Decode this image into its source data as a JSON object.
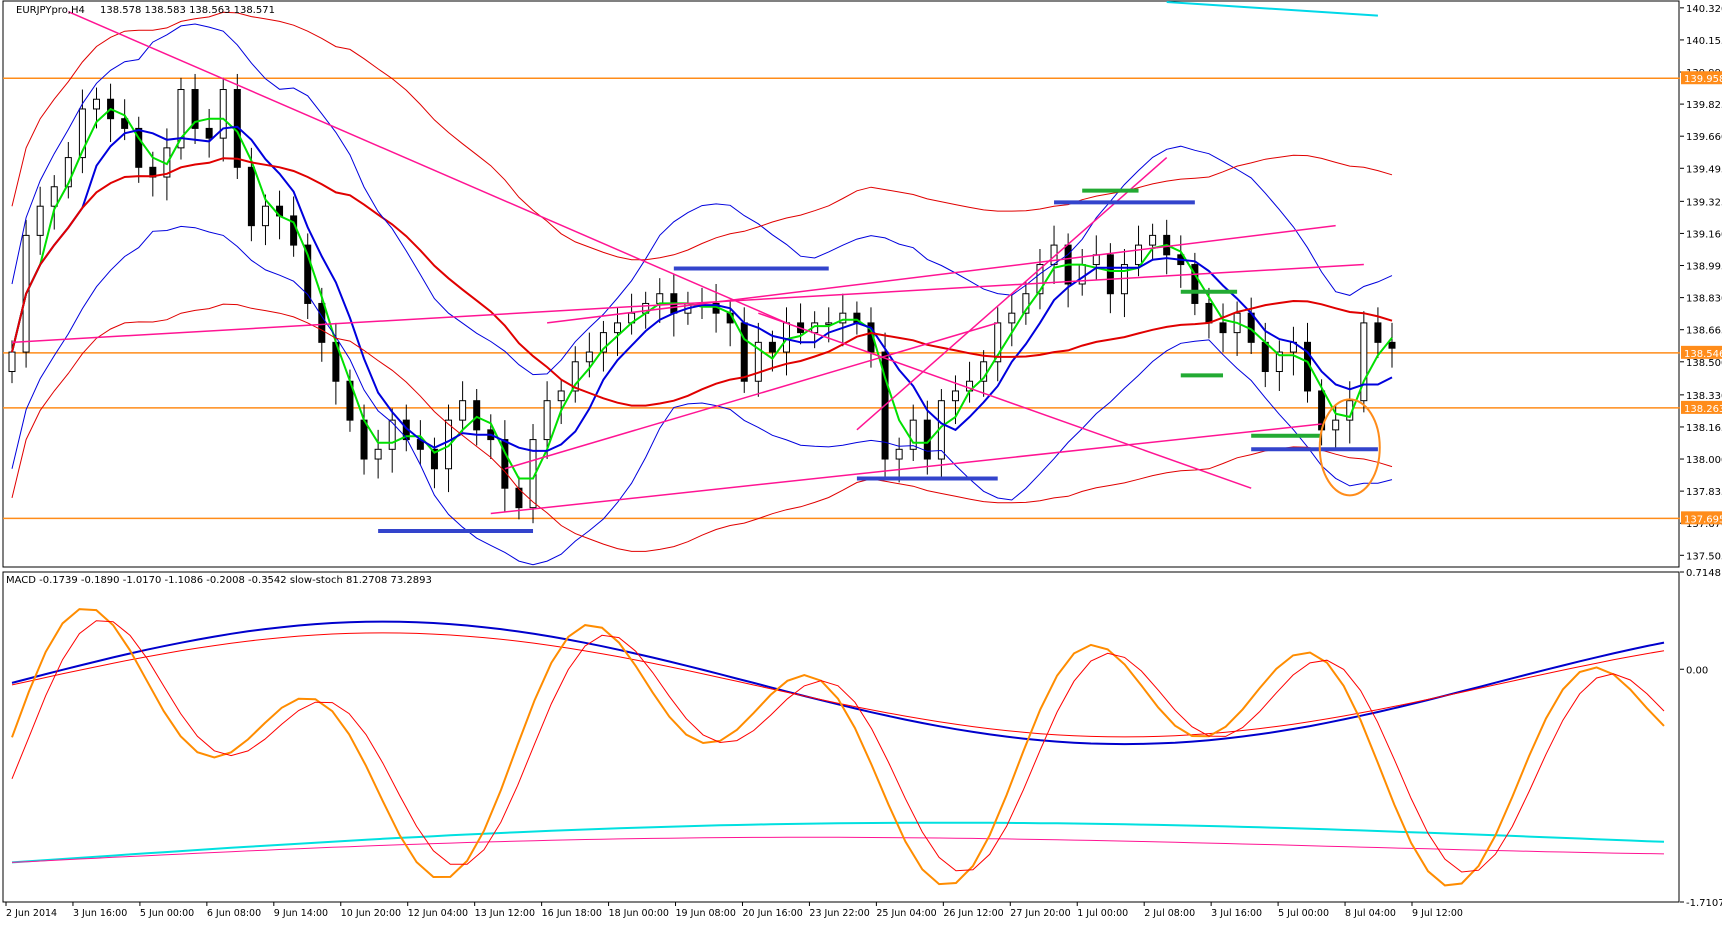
{
  "chart_data": [
    {
      "type": "candlestick",
      "title": "EURJPYpro,H4",
      "ohlc_label": "138.578 138.583 138.563 138.571",
      "ylim": [
        137.45,
        140.35
      ],
      "y_ticks": [
        "140.320",
        "140.155",
        "139.990",
        "139.825",
        "139.660",
        "139.495",
        "139.325",
        "139.160",
        "138.995",
        "138.830",
        "138.665",
        "138.500",
        "138.330",
        "138.165",
        "138.000",
        "137.835",
        "137.670",
        "137.505"
      ],
      "x_ticks": [
        "2 Jun 2014",
        "3 Jun 16:00",
        "5 Jun 00:00",
        "6 Jun 08:00",
        "9 Jun 14:00",
        "10 Jun 20:00",
        "12 Jun 04:00",
        "13 Jun 12:00",
        "16 Jun 18:00",
        "18 Jun 00:00",
        "19 Jun 08:00",
        "20 Jun 16:00",
        "23 Jun 22:00",
        "25 Jun 04:00",
        "26 Jun 12:00",
        "27 Jun 20:00",
        "1 Jul 00:00",
        "2 Jul 08:00",
        "3 Jul 16:00",
        "5 Jul 00:00",
        "8 Jul 04:00",
        "9 Jul 12:00"
      ],
      "price_labels": [
        {
          "text": "139.958",
          "value": 139.958,
          "color": "#ff8c1a"
        },
        {
          "text": "138.546",
          "value": 138.546,
          "color": "#ff8c1a"
        },
        {
          "text": "138.263",
          "value": 138.263,
          "color": "#ff8c1a"
        },
        {
          "text": "137.695",
          "value": 137.695,
          "color": "#ff8c1a"
        }
      ],
      "horizontal_levels": [
        139.958,
        138.546,
        138.263,
        137.695
      ],
      "close_series": [
        138.55,
        139.15,
        139.3,
        139.4,
        139.55,
        139.8,
        139.85,
        139.75,
        139.7,
        139.5,
        139.45,
        139.6,
        139.9,
        139.7,
        139.65,
        139.9,
        139.5,
        139.2,
        139.3,
        139.25,
        139.1,
        138.8,
        138.6,
        138.4,
        138.2,
        138.0,
        138.05,
        138.2,
        138.1,
        138.05,
        137.95,
        138.2,
        138.3,
        138.15,
        138.1,
        137.85,
        137.75,
        138.1,
        138.3,
        138.35,
        138.5,
        138.55,
        138.65,
        138.7,
        138.75,
        138.8,
        138.85,
        138.75,
        138.8,
        138.8,
        138.75,
        138.7,
        138.4,
        138.6,
        138.55,
        138.7,
        138.65,
        138.7,
        138.7,
        138.75,
        138.7,
        138.55,
        138.0,
        138.05,
        138.2,
        138.0,
        138.3,
        138.35,
        138.4,
        138.5,
        138.7,
        138.75,
        138.85,
        139.0,
        139.1,
        138.9,
        139.0,
        139.05,
        138.85,
        139.0,
        139.1,
        139.15,
        139.05,
        139.0,
        138.8,
        138.7,
        138.65,
        138.75,
        138.6,
        138.45,
        138.55,
        138.6,
        138.35,
        138.15,
        138.2,
        138.3,
        138.7,
        138.6,
        138.57
      ],
      "moving_averages": [
        {
          "color": "#00e000",
          "period": "fast"
        },
        {
          "color": "#0000dd",
          "period": "medium"
        },
        {
          "color": "#e00000",
          "period": "slow"
        }
      ],
      "annotations": {
        "trend_line_color": "#ff1493",
        "support_resistance_color": "#3344cc",
        "short_level_color": "#22aa33",
        "circle_color": "#ff8c1a"
      }
    },
    {
      "type": "line",
      "title": "MACD -0.1739 -0.1890 -1.0170 -1.1086 -0.2008 -0.3542 slow-stoch 81.2708 73.2893",
      "ylim": [
        -1.7107,
        0.7148
      ],
      "y_ticks": [
        "0.7148",
        "0.00",
        "-1.7107"
      ],
      "series": [
        {
          "color": "#ff8c00"
        },
        {
          "color": "#ff0000"
        },
        {
          "color": "#0000cc"
        },
        {
          "color": "#00e0e0"
        },
        {
          "color": "#ff1493"
        }
      ]
    }
  ]
}
